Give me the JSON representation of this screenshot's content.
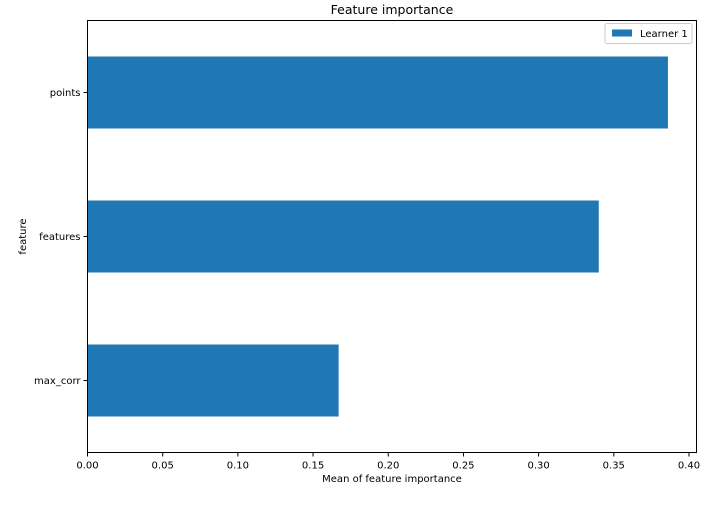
{
  "chart_data": {
    "type": "bar",
    "orientation": "horizontal",
    "title": "Feature importance",
    "xlabel": "Mean of feature importance",
    "ylabel": "feature",
    "categories": [
      "max_corr",
      "features",
      "points"
    ],
    "series": [
      {
        "name": "Learner 1",
        "values": [
          0.167,
          0.34,
          0.386
        ]
      }
    ],
    "xlim": [
      0,
      0.405
    ],
    "xticks": [
      0.0,
      0.05,
      0.1,
      0.15,
      0.2,
      0.25,
      0.3,
      0.35,
      0.4
    ],
    "xtick_labels": [
      "0.00",
      "0.05",
      "0.10",
      "0.15",
      "0.20",
      "0.25",
      "0.30",
      "0.35",
      "0.40"
    ],
    "grid": false,
    "legend_position": "top-right",
    "colors": {
      "bar": "#1f77b4",
      "axis": "#000000",
      "legend_border": "#cccccc"
    }
  }
}
